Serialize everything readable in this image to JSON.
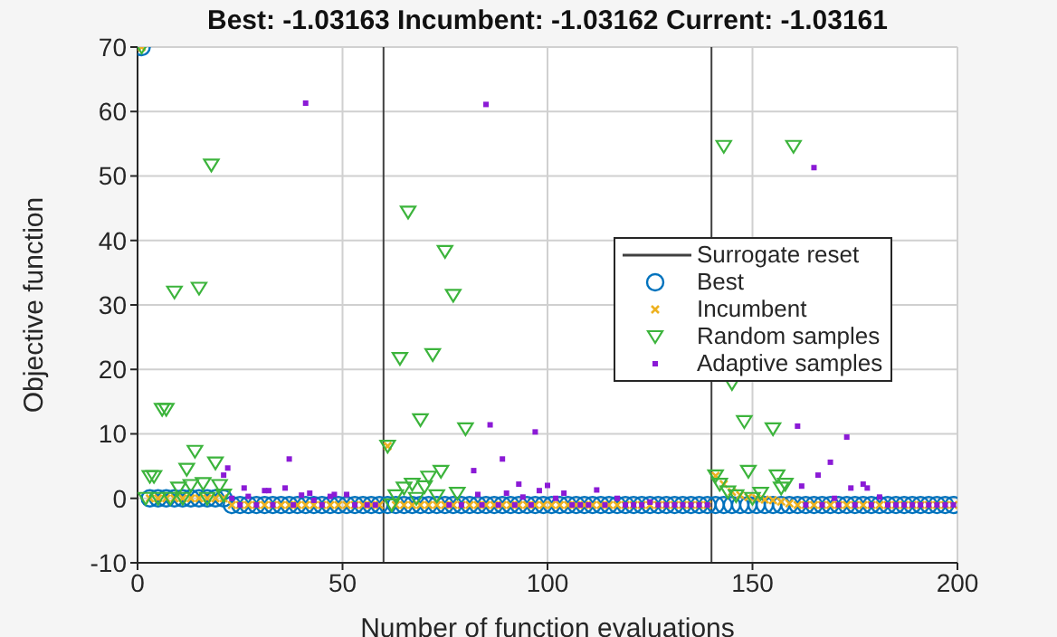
{
  "chart_data": {
    "type": "scatter",
    "title": "Best: -1.03163 Incumbent: -1.03162 Current: -1.03161",
    "xlabel": "Number of function evaluations",
    "ylabel": "Objective function",
    "xlim": [
      0,
      200
    ],
    "xticks": [
      0,
      50,
      100,
      150,
      200
    ],
    "ylim": [
      -10,
      70
    ],
    "yticks": [
      -10,
      0,
      10,
      20,
      30,
      40,
      50,
      60,
      70
    ],
    "grid": true,
    "legend": "right",
    "series": [
      {
        "name": "Surrogate reset",
        "type": "line",
        "color": "#404040",
        "x": [
          60,
          60,
          null,
          140,
          140
        ],
        "values": [
          -10,
          70,
          null,
          -10,
          70
        ]
      },
      {
        "name": "Best",
        "color": "#0072bd",
        "marker": "circle",
        "x": [
          1,
          3,
          5,
          7,
          9,
          11,
          13,
          15,
          17,
          19,
          21,
          23,
          25,
          27,
          29,
          31,
          33,
          35,
          37,
          39,
          41,
          43,
          45,
          47,
          49,
          51,
          53,
          55,
          57,
          59,
          61,
          63,
          65,
          67,
          69,
          71,
          73,
          75,
          77,
          79,
          81,
          83,
          85,
          87,
          89,
          91,
          93,
          95,
          97,
          99,
          101,
          103,
          105,
          107,
          109,
          111,
          113,
          115,
          117,
          119,
          121,
          123,
          125,
          127,
          129,
          131,
          133,
          135,
          137,
          139,
          141,
          143,
          145,
          147,
          149,
          151,
          153,
          155,
          157,
          159,
          161,
          163,
          165,
          167,
          169,
          171,
          173,
          175,
          177,
          179,
          181,
          183,
          185,
          187,
          189,
          191,
          193,
          195,
          197,
          199
        ],
        "values": [
          70,
          0,
          0,
          0,
          0,
          0,
          0,
          0,
          0,
          0,
          0,
          -1.03,
          -1.03,
          -1.03,
          -1.03,
          -1.03,
          -1.03,
          -1.03,
          -1.03,
          -1.03,
          -1.03,
          -1.03,
          -1.03,
          -1.03,
          -1.03,
          -1.03,
          -1.03,
          -1.03,
          -1.03,
          -1.03,
          -1.03,
          -1.03,
          -1.03,
          -1.03,
          -1.03,
          -1.03,
          -1.03,
          -1.03,
          -1.03,
          -1.03,
          -1.03,
          -1.03,
          -1.03,
          -1.03,
          -1.03,
          -1.03,
          -1.03,
          -1.03,
          -1.03,
          -1.03,
          -1.03,
          -1.03,
          -1.03,
          -1.03,
          -1.03,
          -1.03,
          -1.03,
          -1.03,
          -1.03,
          -1.03,
          -1.03,
          -1.03,
          -1.03,
          -1.03,
          -1.03,
          -1.03,
          -1.03,
          -1.03,
          -1.03,
          -1.03,
          -1.03,
          -1.03,
          -1.03,
          -1.03,
          -1.03,
          -1.03,
          -1.03,
          -1.03,
          -1.03,
          -1.03,
          -1.03,
          -1.03,
          -1.03,
          -1.03,
          -1.03,
          -1.03,
          -1.03,
          -1.03,
          -1.03,
          -1.03,
          -1.03,
          -1.03,
          -1.03,
          -1.03,
          -1.03,
          -1.03,
          -1.03,
          -1.03,
          -1.03,
          -1.03
        ]
      },
      {
        "name": "Incumbent",
        "color": "#edb120",
        "marker": "cross",
        "x": [
          1,
          3,
          5,
          7,
          9,
          11,
          13,
          15,
          17,
          19,
          21,
          23,
          25,
          27,
          29,
          31,
          33,
          35,
          37,
          39,
          41,
          43,
          45,
          47,
          49,
          51,
          53,
          55,
          57,
          59,
          61,
          63,
          65,
          67,
          69,
          71,
          73,
          75,
          77,
          79,
          81,
          83,
          85,
          87,
          89,
          91,
          93,
          95,
          97,
          99,
          101,
          103,
          105,
          107,
          109,
          111,
          113,
          115,
          117,
          119,
          121,
          123,
          125,
          127,
          129,
          131,
          133,
          135,
          137,
          139,
          141,
          143,
          145,
          147,
          149,
          151,
          153,
          155,
          157,
          159,
          161,
          163,
          165,
          167,
          169,
          171,
          173,
          175,
          177,
          179,
          181,
          183,
          185,
          187,
          189,
          191,
          193,
          195,
          197,
          199
        ],
        "values": [
          70,
          0,
          0,
          0,
          0,
          0,
          0,
          0,
          0,
          0,
          0,
          -1.03,
          -1.03,
          -1.03,
          -1.03,
          -1.03,
          -1.03,
          -1.03,
          -1.03,
          -1.03,
          -1.03,
          -1.03,
          -1.03,
          -1.03,
          -1.03,
          -1.03,
          -1.03,
          -1.03,
          -1.03,
          -1.03,
          8.1,
          -1.03,
          -1.03,
          -1.03,
          -1.03,
          -1.03,
          -1.03,
          -1.03,
          -1.03,
          -1.03,
          -1.03,
          -1.03,
          -1.03,
          -1.03,
          -1.03,
          -1.03,
          -1.03,
          -1.03,
          -1.03,
          -1.03,
          -1.03,
          -1.03,
          -1.03,
          -1.03,
          -1.03,
          -1.03,
          -1.03,
          -1.03,
          -1.03,
          -1.03,
          -1.03,
          -1.03,
          -1.03,
          -1.03,
          -1.03,
          -1.03,
          -1.03,
          -1.03,
          -1.03,
          -1.03,
          3.5,
          2.2,
          1,
          0.5,
          0.2,
          0,
          -0.2,
          -0.3,
          -0.5,
          -0.8,
          -1.03,
          -1.03,
          -1.03,
          -1.03,
          -1.03,
          -1.03,
          -1.03,
          -1.03,
          -1.03,
          -1.03,
          -1.03,
          -1.03,
          -1.03,
          -1.03,
          -1.03,
          -1.03,
          -1.03,
          -1.03,
          -1.03,
          -1.03
        ]
      },
      {
        "name": "Random samples",
        "color": "#3cb43c",
        "marker": "triangle",
        "x": [
          1,
          2,
          3,
          4,
          5,
          6,
          7,
          8,
          9,
          10,
          11,
          12,
          13,
          14,
          15,
          16,
          17,
          18,
          19,
          20,
          21,
          61,
          62,
          63,
          64,
          65,
          66,
          67,
          68,
          69,
          70,
          71,
          72,
          73,
          74,
          75,
          77,
          78,
          80,
          141,
          142,
          143,
          144,
          145,
          146,
          148,
          149,
          150,
          152,
          155,
          156,
          157,
          158,
          160
        ],
        "values": [
          70,
          0,
          3.4,
          3.4,
          0,
          13.8,
          13.8,
          0,
          32,
          1.6,
          0,
          4.5,
          2,
          7.3,
          32.6,
          2.3,
          0,
          51.7,
          5.5,
          2,
          0.5,
          8.1,
          -1,
          0.4,
          21.7,
          1.6,
          44.4,
          2.2,
          0,
          12.2,
          1.8,
          3.3,
          22.3,
          0.4,
          4.2,
          38.3,
          31.5,
          0.8,
          10.8,
          3.5,
          2.2,
          54.6,
          1,
          17.8,
          0.4,
          11.9,
          4.2,
          0,
          0.8,
          10.8,
          3.5,
          1.6,
          2.2,
          54.6
        ]
      },
      {
        "name": "Adaptive samples",
        "color": "#8b1ad6",
        "marker": "square",
        "x": [
          21,
          22,
          23,
          25,
          26,
          27,
          29,
          31,
          32,
          33,
          36,
          37,
          38,
          40,
          41,
          42,
          43,
          45,
          47,
          48,
          51,
          53,
          56,
          58,
          76,
          79,
          82,
          83,
          84,
          85,
          86,
          88,
          89,
          90,
          92,
          93,
          94,
          96,
          97,
          98,
          100,
          102,
          104,
          106,
          108,
          110,
          112,
          114,
          117,
          119,
          121,
          123,
          125,
          127,
          129,
          131,
          133,
          135,
          137,
          139,
          161,
          162,
          163,
          165,
          166,
          167,
          169,
          170,
          171,
          173,
          174,
          175,
          177,
          178,
          179,
          181,
          183,
          185,
          187,
          189,
          191,
          193,
          195,
          197,
          199
        ],
        "values": [
          3.6,
          4.7,
          0,
          -1.03,
          1.6,
          0.3,
          -1.03,
          1.2,
          1.2,
          -1.03,
          1.6,
          6.1,
          -1.03,
          0.5,
          61.3,
          0.8,
          -0.3,
          -1.03,
          0.3,
          0.6,
          0.6,
          -1.03,
          -1.03,
          -1.03,
          -1.03,
          -1.03,
          4.3,
          0.6,
          -1.03,
          61.1,
          11.4,
          -1.03,
          6.1,
          0.8,
          -1.03,
          2.2,
          0.2,
          -1.03,
          10.3,
          1.2,
          2,
          0,
          0.8,
          -1.03,
          -1.03,
          -1.03,
          1.3,
          -1.03,
          0,
          -1.03,
          -1.03,
          -1.03,
          -0.6,
          -1.03,
          -1.03,
          -1.03,
          -1.03,
          -1.03,
          -1.03,
          -1.03,
          11.2,
          1.9,
          -1.03,
          51.3,
          3.6,
          -1.03,
          5.6,
          0,
          -1.03,
          9.5,
          1.6,
          -1.03,
          2.2,
          1.6,
          -1.03,
          0.2,
          -1.03,
          -1.03,
          -1.03,
          -1.03,
          -1.03,
          -1.03,
          -1.03,
          -1.03,
          -1.03
        ]
      }
    ]
  }
}
